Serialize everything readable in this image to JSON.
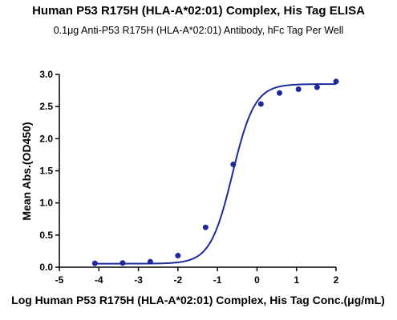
{
  "chart_data": {
    "type": "scatter",
    "title": "Human P53 R175H (HLA-A*02:01) Complex, His Tag ELISA",
    "subtitle": "0.1μg Anti-P53 R175H (HLA-A*02:01) Antibody, hFc Tag Per Well",
    "xlabel": "Log Human P53 R175H (HLA-A*02:01) Complex, His Tag Conc.(μg/mL)",
    "ylabel": "Mean Abs.(OD450)",
    "xlim": [
      -5,
      2
    ],
    "ylim": [
      0,
      3.0
    ],
    "x_ticks": [
      "-5",
      "-4",
      "-3",
      "-2",
      "-1",
      "0",
      "1",
      "2"
    ],
    "y_ticks": [
      "0.0",
      "0.5",
      "1.0",
      "1.5",
      "2.0",
      "2.5",
      "3.0"
    ],
    "grid": false,
    "marker_color": "#1c2a9c",
    "series": [
      {
        "x": [
          -4.1,
          -3.4,
          -2.7,
          -2.0,
          -1.3,
          -0.6,
          0.1,
          0.57,
          1.05,
          1.52,
          2.0
        ],
        "y": [
          0.06,
          0.065,
          0.085,
          0.18,
          0.62,
          1.6,
          2.54,
          2.71,
          2.77,
          2.8,
          2.89
        ]
      }
    ],
    "fit_curve": {
      "model": "4PL",
      "bottom": 0.055,
      "top": 2.85,
      "log_ec50": -0.62,
      "hill": 1.55,
      "x_range": [
        -4.1,
        2.0
      ]
    }
  }
}
